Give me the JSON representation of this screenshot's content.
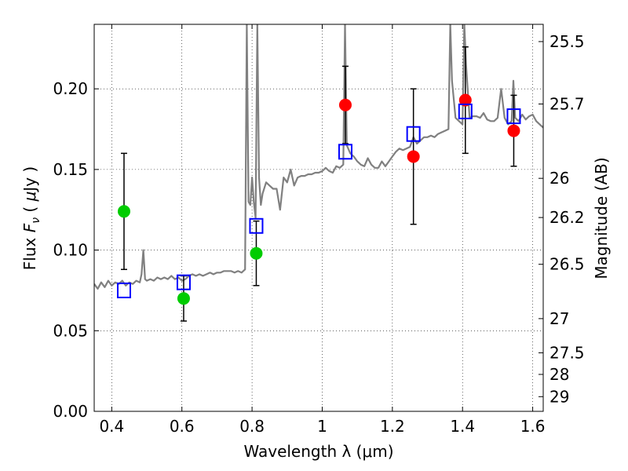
{
  "chart_data": {
    "type": "scatter",
    "xlabel": "Wavelength  λ (μm)",
    "ylabel_parts": [
      "Flux  ",
      "F",
      "ν",
      "  ( ",
      "μ",
      "Jy )"
    ],
    "y2label": "Magnitude (AB)",
    "xlim": [
      0.35,
      1.63
    ],
    "ylim": [
      0.0,
      0.24
    ],
    "grid": true,
    "x_ticks": [
      0.4,
      0.6,
      0.8,
      1.0,
      1.2,
      1.4,
      1.6
    ],
    "x_tick_labels": [
      "0.4",
      "0.6",
      "0.8",
      "1",
      "1.2",
      "1.4",
      "1.6"
    ],
    "y_ticks": [
      0.0,
      0.05,
      0.1,
      0.15,
      0.2
    ],
    "y_tick_labels": [
      "0.00",
      "0.05",
      "0.10",
      "0.15",
      "0.20"
    ],
    "magnitude_ticks": [
      {
        "label": "25.5",
        "flux": 0.2293
      },
      {
        "label": "25.7",
        "flux": 0.1906
      },
      {
        "label": "26",
        "flux": 0.1445
      },
      {
        "label": "26.2",
        "flux": 0.1202
      },
      {
        "label": "26.5",
        "flux": 0.0912
      },
      {
        "label": "27",
        "flux": 0.0575
      },
      {
        "label": "27.5",
        "flux": 0.0363
      },
      {
        "label": "28",
        "flux": 0.0229
      },
      {
        "label": "29",
        "flux": 0.0091
      }
    ],
    "series": [
      {
        "style": "line",
        "color": "#808080",
        "x": [
          0.35,
          0.36,
          0.37,
          0.38,
          0.39,
          0.4,
          0.41,
          0.42,
          0.43,
          0.44,
          0.45,
          0.46,
          0.47,
          0.48,
          0.485,
          0.49,
          0.495,
          0.5,
          0.51,
          0.52,
          0.53,
          0.54,
          0.55,
          0.56,
          0.57,
          0.58,
          0.59,
          0.6,
          0.61,
          0.62,
          0.63,
          0.64,
          0.65,
          0.66,
          0.67,
          0.68,
          0.69,
          0.7,
          0.71,
          0.72,
          0.73,
          0.74,
          0.75,
          0.76,
          0.77,
          0.78,
          0.785,
          0.79,
          0.795,
          0.8,
          0.805,
          0.81,
          0.815,
          0.82,
          0.825,
          0.83,
          0.84,
          0.85,
          0.86,
          0.87,
          0.88,
          0.89,
          0.9,
          0.91,
          0.92,
          0.93,
          0.94,
          0.95,
          0.96,
          0.97,
          0.98,
          0.99,
          1.0,
          1.01,
          1.02,
          1.03,
          1.04,
          1.05,
          1.06,
          1.065,
          1.07,
          1.08,
          1.09,
          1.1,
          1.11,
          1.12,
          1.13,
          1.14,
          1.15,
          1.16,
          1.17,
          1.18,
          1.19,
          1.2,
          1.21,
          1.22,
          1.23,
          1.24,
          1.25,
          1.26,
          1.27,
          1.28,
          1.29,
          1.3,
          1.31,
          1.32,
          1.33,
          1.34,
          1.35,
          1.36,
          1.365,
          1.37,
          1.38,
          1.39,
          1.4,
          1.405,
          1.41,
          1.42,
          1.43,
          1.44,
          1.45,
          1.46,
          1.47,
          1.48,
          1.49,
          1.5,
          1.51,
          1.52,
          1.53,
          1.54,
          1.545,
          1.55,
          1.56,
          1.57,
          1.58,
          1.59,
          1.6,
          1.61,
          1.62,
          1.63
        ],
        "y": [
          0.079,
          0.076,
          0.08,
          0.077,
          0.081,
          0.078,
          0.08,
          0.079,
          0.081,
          0.078,
          0.08,
          0.079,
          0.081,
          0.08,
          0.085,
          0.1,
          0.082,
          0.081,
          0.082,
          0.081,
          0.083,
          0.082,
          0.083,
          0.082,
          0.084,
          0.082,
          0.083,
          0.081,
          0.082,
          0.084,
          0.085,
          0.084,
          0.085,
          0.084,
          0.085,
          0.086,
          0.085,
          0.086,
          0.086,
          0.087,
          0.087,
          0.087,
          0.086,
          0.087,
          0.086,
          0.088,
          0.24,
          0.13,
          0.128,
          0.145,
          0.13,
          0.12,
          0.24,
          0.145,
          0.128,
          0.135,
          0.142,
          0.14,
          0.138,
          0.138,
          0.125,
          0.145,
          0.142,
          0.15,
          0.14,
          0.145,
          0.146,
          0.146,
          0.147,
          0.147,
          0.148,
          0.148,
          0.149,
          0.151,
          0.149,
          0.148,
          0.152,
          0.151,
          0.153,
          0.24,
          0.165,
          0.16,
          0.158,
          0.155,
          0.153,
          0.152,
          0.157,
          0.153,
          0.151,
          0.151,
          0.155,
          0.152,
          0.155,
          0.158,
          0.161,
          0.163,
          0.162,
          0.163,
          0.164,
          0.17,
          0.166,
          0.168,
          0.17,
          0.17,
          0.171,
          0.17,
          0.172,
          0.173,
          0.174,
          0.175,
          0.24,
          0.205,
          0.182,
          0.18,
          0.178,
          0.24,
          0.215,
          0.182,
          0.183,
          0.183,
          0.182,
          0.185,
          0.181,
          0.18,
          0.18,
          0.182,
          0.2,
          0.182,
          0.178,
          0.18,
          0.205,
          0.182,
          0.18,
          0.184,
          0.181,
          0.183,
          0.184,
          0.18,
          0.178,
          0.176
        ]
      },
      {
        "style": "points",
        "marker": "circle",
        "color": "#00cc00",
        "x": [
          0.435,
          0.605,
          0.812
        ],
        "y": [
          0.124,
          0.07,
          0.098
        ],
        "yerr": [
          0.036,
          0.014,
          0.02
        ]
      },
      {
        "style": "points",
        "marker": "circle",
        "color": "#ff0000",
        "x": [
          1.066,
          1.26,
          1.408,
          1.546
        ],
        "y": [
          0.19,
          0.158,
          0.193,
          0.174
        ],
        "yerr": [
          0.024,
          0.042,
          0.033,
          0.022
        ]
      },
      {
        "style": "points",
        "marker": "open-square",
        "color": "#0000ff",
        "x": [
          0.435,
          0.605,
          0.812,
          1.066,
          1.26,
          1.408,
          1.546
        ],
        "y": [
          0.075,
          0.08,
          0.115,
          0.161,
          0.172,
          0.186,
          0.183
        ]
      }
    ]
  }
}
